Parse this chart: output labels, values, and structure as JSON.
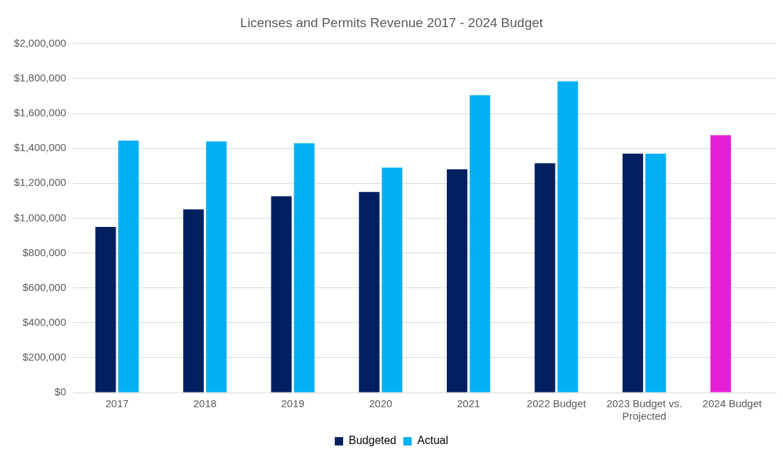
{
  "chart_data": {
    "type": "bar",
    "title": "Licenses and Permits Revenue 2017 - 2024 Budget",
    "categories": [
      "2017",
      "2018",
      "2019",
      "2020",
      "2021",
      "2022 Budget",
      "2023 Budget vs. Projected",
      "2024 Budget"
    ],
    "series": [
      {
        "name": "Budgeted",
        "color": "#002060",
        "colors": [
          "#002060",
          "#002060",
          "#002060",
          "#002060",
          "#002060",
          "#002060",
          "#002060",
          "#e61ed6"
        ],
        "values": [
          950000,
          1050000,
          1125000,
          1150000,
          1280000,
          1315000,
          1370000,
          1475000
        ]
      },
      {
        "name": "Actual",
        "color": "#00b0f0",
        "values": [
          1445000,
          1440000,
          1430000,
          1290000,
          1705000,
          1785000,
          1370000,
          null
        ]
      }
    ],
    "ylim": [
      0,
      2000000
    ],
    "yticks": [
      {
        "value": 0,
        "label": "$0"
      },
      {
        "value": 200000,
        "label": "$200,000"
      },
      {
        "value": 400000,
        "label": "$400,000"
      },
      {
        "value": 600000,
        "label": "$600,000"
      },
      {
        "value": 800000,
        "label": "$800,000"
      },
      {
        "value": 1000000,
        "label": "$1,000,000"
      },
      {
        "value": 1200000,
        "label": "$1,200,000"
      },
      {
        "value": 1400000,
        "label": "$1,400,000"
      },
      {
        "value": 1600000,
        "label": "$1,600,000"
      },
      {
        "value": 1800000,
        "label": "$1,800,000"
      },
      {
        "value": 2000000,
        "label": "$2,000,000"
      }
    ],
    "grid": "y",
    "legend": "bottom"
  }
}
